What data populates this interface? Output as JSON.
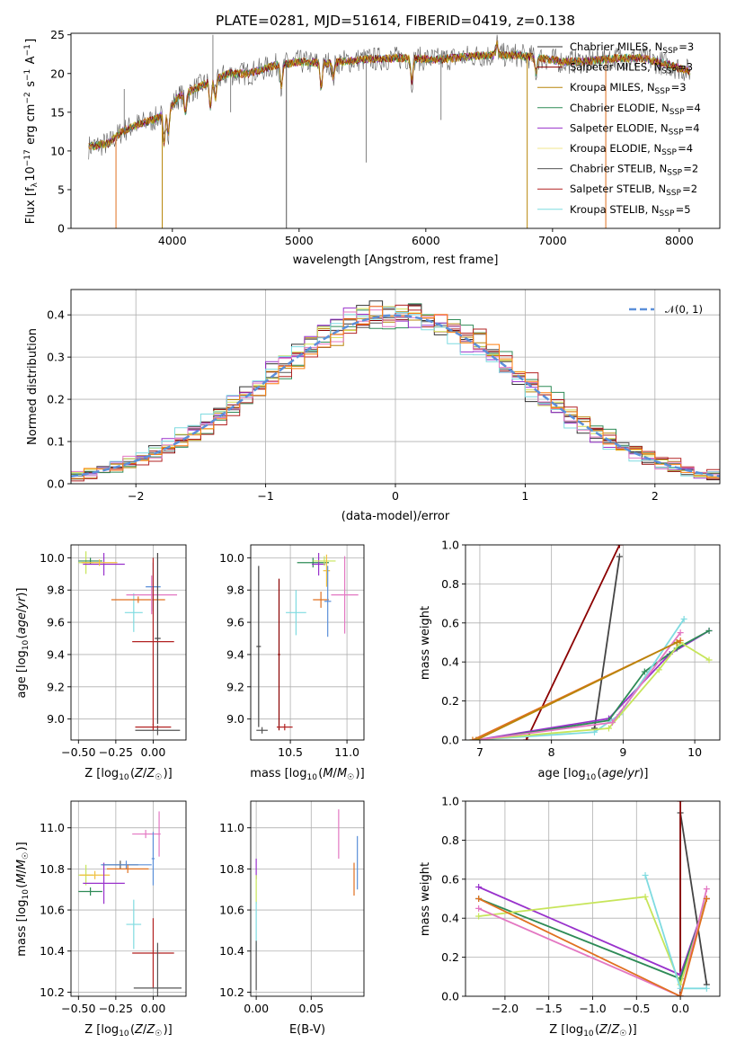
{
  "chart_data": [
    {
      "type": "line",
      "title": "PLATE=0281, MJD=51614, FIBERID=0419, z=0.138",
      "xlabel": "wavelength [Angstrom, rest frame]",
      "ylabel": "Flux [fλ10⁻¹⁷ erg cm⁻² s⁻¹ A⁻¹]",
      "xlim": [
        3200,
        8320
      ],
      "ylim": [
        0,
        25.2
      ],
      "xticks": [
        4000,
        5000,
        6000,
        7000,
        8000
      ],
      "yticks": [
        0,
        5,
        10,
        15,
        20,
        25
      ],
      "legend_position": "right",
      "series": [
        {
          "name": "Chabrier MILES, N_SSP=3",
          "color": "#333333"
        },
        {
          "name": "Salpeter MILES, N_SSP=3",
          "color": "#8b0000"
        },
        {
          "name": "Kroupa MILES, N_SSP=3",
          "color": "#b8860b"
        },
        {
          "name": "Chabrier ELODIE, N_SSP=4",
          "color": "#2e8b57"
        },
        {
          "name": "Salpeter ELODIE, N_SSP=4",
          "color": "#9932cc"
        },
        {
          "name": "Kroupa ELODIE, N_SSP=4",
          "color": "#f0e68c"
        },
        {
          "name": "Chabrier STELIB, N_SSP=2",
          "color": "#555555"
        },
        {
          "name": "Salpeter STELIB, N_SSP=2",
          "color": "#b22222"
        },
        {
          "name": "Kroupa STELIB, N_SSP=5",
          "color": "#7fdbe0"
        }
      ],
      "spectrum_nodes": {
        "x": [
          3340,
          3500,
          3600,
          3700,
          3850,
          3950,
          4050,
          4150,
          4300,
          4450,
          4600,
          4800,
          5000,
          5200,
          5500,
          5800,
          6100,
          6400,
          6700,
          6900,
          7100,
          7300,
          7500,
          7700,
          7900,
          8080
        ],
        "y": [
          10.5,
          11.0,
          12.5,
          13.3,
          14.0,
          15.0,
          17.0,
          17.8,
          19.0,
          20.0,
          20.0,
          21.0,
          21.5,
          21.3,
          21.8,
          22.0,
          21.8,
          22.3,
          22.4,
          22.0,
          21.5,
          21.6,
          22.0,
          22.0,
          21.2,
          20.3
        ]
      }
    },
    {
      "type": "histogram",
      "xlabel": "(data-model)/error",
      "ylabel": "Normed distribution",
      "xlim": [
        -2.5,
        2.5
      ],
      "ylim": [
        0,
        0.46
      ],
      "xticks": [
        -2,
        -1,
        0,
        1,
        2
      ],
      "yticks": [
        0.0,
        0.1,
        0.2,
        0.3,
        0.4
      ],
      "legend": [
        "𝒩(0, 1)"
      ],
      "reference_curve": {
        "name": "𝒩(0, 1)",
        "mean": 0,
        "sigma": 1,
        "color": "#5b8fd9"
      },
      "bin_width": 0.1,
      "series_colors": [
        "#333333",
        "#8b0000",
        "#b8860b",
        "#2e8b57",
        "#9932cc",
        "#d4e157",
        "#555555",
        "#b22222",
        "#7fdbe0",
        "#e377c2",
        "#ff7f0e"
      ]
    },
    {
      "type": "scatter",
      "xlabel": "Z [log10(Z/Z☉)]",
      "ylabel": "age  [log10(age/yr)]",
      "xlim": [
        -0.55,
        0.22
      ],
      "ylim": [
        8.87,
        10.08
      ],
      "xticks": [
        -0.5,
        -0.25,
        0.0
      ],
      "yticks": [
        9.0,
        9.2,
        9.4,
        9.6,
        9.8,
        10.0
      ],
      "points": [
        {
          "x": -0.45,
          "y": 9.97,
          "xerr": 0.05,
          "yerr": 0.07,
          "color": "#c7e55a"
        },
        {
          "x": -0.42,
          "y": 9.98,
          "xerr": 0.08,
          "yerr": 0.02,
          "color": "#2e8b57"
        },
        {
          "x": -0.33,
          "y": 9.96,
          "xerr": 0.14,
          "yerr": 0.07,
          "color": "#9932cc"
        },
        {
          "x": -0.36,
          "y": 9.97,
          "xerr": 0.12,
          "yerr": 0.02,
          "color": "#f0c040"
        },
        {
          "x": -0.13,
          "y": 9.66,
          "xerr": 0.06,
          "yerr": 0.12,
          "color": "#7fdbe0"
        },
        {
          "x": -0.1,
          "y": 9.74,
          "xerr": 0.18,
          "yerr": 0.02,
          "color": "#e07020"
        },
        {
          "x": -0.01,
          "y": 9.77,
          "xerr": 0.17,
          "yerr": 0.12,
          "color": "#e377c2"
        },
        {
          "x": 0.0,
          "y": 9.82,
          "xerr": 0.05,
          "yerr": 0.15,
          "color": "#5b8fd9"
        },
        {
          "x": 0.03,
          "y": 9.5,
          "xerr": 0.02,
          "yerr": 0.53,
          "color": "#444444"
        },
        {
          "x": 0.0,
          "y": 9.48,
          "xerr": 0.14,
          "yerr": 0.52,
          "color": "#b22222"
        },
        {
          "x": 0.03,
          "y": 8.93,
          "xerr": 0.15,
          "yerr": 0.03,
          "color": "#555555"
        },
        {
          "x": 0.0,
          "y": 8.95,
          "xerr": 0.12,
          "yerr": 0.02,
          "color": "#b22222"
        }
      ]
    },
    {
      "type": "scatter",
      "xlabel": "mass [log10(M/M☉)]",
      "ylabel": "",
      "xlim": [
        10.15,
        11.15
      ],
      "ylim": [
        8.87,
        10.08
      ],
      "xticks": [
        10.5,
        11.0
      ],
      "yticks": [
        9.0,
        9.2,
        9.4,
        9.6,
        9.8,
        10.0
      ],
      "points": [
        {
          "x": 10.7,
          "y": 9.97,
          "xerr": 0.14,
          "yerr": 0.03,
          "color": "#2e8b57"
        },
        {
          "x": 10.75,
          "y": 9.96,
          "xerr": 0.06,
          "yerr": 0.07,
          "color": "#9932cc"
        },
        {
          "x": 10.8,
          "y": 9.98,
          "xerr": 0.1,
          "yerr": 0.03,
          "color": "#c7e55a"
        },
        {
          "x": 10.82,
          "y": 9.92,
          "xerr": 0.03,
          "yerr": 0.1,
          "color": "#f0c040"
        },
        {
          "x": 10.98,
          "y": 9.77,
          "xerr": 0.12,
          "yerr": 0.24,
          "color": "#e377c2"
        },
        {
          "x": 10.77,
          "y": 9.74,
          "xerr": 0.07,
          "yerr": 0.05,
          "color": "#e07020"
        },
        {
          "x": 10.83,
          "y": 9.73,
          "xerr": 0.03,
          "yerr": 0.22,
          "color": "#5b8fd9"
        },
        {
          "x": 10.55,
          "y": 9.66,
          "xerr": 0.09,
          "yerr": 0.14,
          "color": "#7fdbe0"
        },
        {
          "x": 10.4,
          "y": 9.4,
          "xerr": 0.01,
          "yerr": 0.47,
          "color": "#8b0000"
        },
        {
          "x": 10.45,
          "y": 8.95,
          "xerr": 0.07,
          "yerr": 0.02,
          "color": "#b22222"
        },
        {
          "x": 10.22,
          "y": 9.45,
          "xerr": 0.02,
          "yerr": 0.5,
          "color": "#444444"
        },
        {
          "x": 10.25,
          "y": 8.93,
          "xerr": 0.05,
          "yerr": 0.02,
          "color": "#555555"
        }
      ]
    },
    {
      "type": "line",
      "xlabel": "age  [log10(age/yr)]",
      "ylabel": "mass weight",
      "xlim": [
        6.8,
        10.35
      ],
      "ylim": [
        0,
        1.0
      ],
      "xticks": [
        7,
        8,
        9,
        10
      ],
      "yticks": [
        0.0,
        0.2,
        0.4,
        0.6,
        0.8,
        1.0
      ],
      "series": [
        {
          "color": "#8b0000",
          "x": [
            7.65,
            8.95
          ],
          "y": [
            0.0,
            1.0
          ]
        },
        {
          "color": "#444444",
          "x": [
            8.6,
            8.95
          ],
          "y": [
            0.06,
            0.94
          ]
        },
        {
          "color": "#9932cc",
          "x": [
            6.95,
            8.8,
            9.65,
            10.2
          ],
          "y": [
            0.0,
            0.11,
            0.44,
            0.56
          ]
        },
        {
          "color": "#2e8b57",
          "x": [
            7.0,
            8.8,
            9.3,
            9.75,
            10.2
          ],
          "y": [
            0.0,
            0.1,
            0.35,
            0.47,
            0.56
          ]
        },
        {
          "color": "#7fdbe0",
          "x": [
            6.9,
            8.6,
            8.95,
            9.85
          ],
          "y": [
            0.0,
            0.04,
            0.13,
            0.62
          ]
        },
        {
          "color": "#c7e55a",
          "x": [
            6.9,
            8.8,
            9.5,
            9.8,
            10.2
          ],
          "y": [
            0.0,
            0.06,
            0.36,
            0.5,
            0.41
          ]
        },
        {
          "color": "#e07020",
          "x": [
            6.9,
            9.75,
            9.8
          ],
          "y": [
            0.0,
            0.5,
            0.51
          ]
        },
        {
          "color": "#e377c2",
          "x": [
            6.95,
            8.85,
            9.8
          ],
          "y": [
            0.0,
            0.09,
            0.55
          ]
        },
        {
          "color": "#b8860b",
          "x": [
            6.95,
            9.75
          ],
          "y": [
            0.0,
            0.5
          ]
        }
      ]
    },
    {
      "type": "scatter",
      "xlabel": "Z [log10(Z/Z☉)]",
      "ylabel": "mass [log10(M/M☉)]",
      "xlim": [
        -0.55,
        0.22
      ],
      "ylim": [
        10.18,
        11.13
      ],
      "xticks": [
        -0.5,
        -0.25,
        0.0
      ],
      "yticks": [
        10.2,
        10.4,
        10.6,
        10.8,
        11.0
      ],
      "points": [
        {
          "x": -0.45,
          "y": 10.77,
          "xerr": 0.05,
          "yerr": 0.05,
          "color": "#c7e55a"
        },
        {
          "x": -0.39,
          "y": 10.77,
          "xerr": 0.1,
          "yerr": 0.02,
          "color": "#f0c040"
        },
        {
          "x": -0.42,
          "y": 10.69,
          "xerr": 0.08,
          "yerr": 0.02,
          "color": "#2e8b57"
        },
        {
          "x": -0.33,
          "y": 10.73,
          "xerr": 0.14,
          "yerr": 0.1,
          "color": "#9932cc"
        },
        {
          "x": -0.22,
          "y": 10.82,
          "xerr": 0.12,
          "yerr": 0.02,
          "color": "#555555"
        },
        {
          "x": -0.18,
          "y": 10.82,
          "xerr": 0.17,
          "yerr": 0.02,
          "color": "#5b8fd9"
        },
        {
          "x": -0.17,
          "y": 10.8,
          "xerr": 0.14,
          "yerr": 0.02,
          "color": "#e07020"
        },
        {
          "x": -0.13,
          "y": 10.53,
          "xerr": 0.05,
          "yerr": 0.12,
          "color": "#7fdbe0"
        },
        {
          "x": -0.05,
          "y": 10.97,
          "xerr": 0.09,
          "yerr": 0.02,
          "color": "#e377c2"
        },
        {
          "x": 0.04,
          "y": 10.97,
          "xerr": 0.01,
          "yerr": 0.11,
          "color": "#e377c2"
        },
        {
          "x": 0.0,
          "y": 10.85,
          "xerr": 0.01,
          "yerr": 0.13,
          "color": "#5b8fd9"
        },
        {
          "x": 0.0,
          "y": 10.39,
          "xerr": 0.14,
          "yerr": 0.17,
          "color": "#b22222"
        },
        {
          "x": 0.03,
          "y": 10.22,
          "xerr": 0.16,
          "yerr": 0.22,
          "color": "#555555"
        }
      ]
    },
    {
      "type": "scatter",
      "xlabel": "E(B-V)",
      "ylabel": "",
      "xlim": [
        -0.005,
        0.098
      ],
      "ylim": [
        10.18,
        11.13
      ],
      "xticks": [
        0.0,
        0.05
      ],
      "yticks": [
        10.2,
        10.4,
        10.6,
        10.8,
        11.0
      ],
      "points": [
        {
          "x": 0.0,
          "y": 10.8,
          "xerr": 0.0,
          "yerr": 0.05,
          "color": "#9932cc"
        },
        {
          "x": 0.0,
          "y": 10.7,
          "xerr": 0.0,
          "yerr": 0.07,
          "color": "#c7e55a"
        },
        {
          "x": 0.0,
          "y": 10.52,
          "xerr": 0.0,
          "yerr": 0.12,
          "color": "#7fdbe0"
        },
        {
          "x": 0.0,
          "y": 10.33,
          "xerr": 0.0,
          "yerr": 0.12,
          "color": "#555555"
        },
        {
          "x": 0.075,
          "y": 10.97,
          "xerr": 0.0,
          "yerr": 0.12,
          "color": "#e377c2"
        },
        {
          "x": 0.089,
          "y": 10.75,
          "xerr": 0.0,
          "yerr": 0.08,
          "color": "#e07020"
        },
        {
          "x": 0.092,
          "y": 10.83,
          "xerr": 0.0,
          "yerr": 0.13,
          "color": "#5b8fd9"
        }
      ]
    },
    {
      "type": "line",
      "xlabel": "Z [log10(Z/Z☉)]",
      "ylabel": "mass weight",
      "xlim": [
        -2.45,
        0.45
      ],
      "ylim": [
        0,
        1.0
      ],
      "xticks": [
        -2.0,
        -1.5,
        -1.0,
        -0.5,
        0.0
      ],
      "yticks": [
        0.0,
        0.2,
        0.4,
        0.6,
        0.8,
        1.0
      ],
      "series": [
        {
          "color": "#444444",
          "x": [
            0.0,
            0.0,
            0.3
          ],
          "y": [
            0.0,
            0.94,
            0.06
          ]
        },
        {
          "color": "#8b0000",
          "x": [
            0.0,
            0.0
          ],
          "y": [
            0.0,
            1.0
          ]
        },
        {
          "color": "#9932cc",
          "x": [
            -2.3,
            0.0,
            0.3
          ],
          "y": [
            0.56,
            0.11,
            0.5
          ]
        },
        {
          "color": "#2e8b57",
          "x": [
            -2.3,
            0.0,
            0.3
          ],
          "y": [
            0.5,
            0.09,
            0.5
          ]
        },
        {
          "color": "#c7e55a",
          "x": [
            -2.3,
            -0.4,
            0.0,
            0.3
          ],
          "y": [
            0.41,
            0.51,
            0.06,
            0.5
          ]
        },
        {
          "color": "#7fdbe0",
          "x": [
            -0.4,
            0.0,
            0.3
          ],
          "y": [
            0.62,
            0.04,
            0.04
          ]
        },
        {
          "color": "#e377c2",
          "x": [
            -2.3,
            0.0,
            0.3
          ],
          "y": [
            0.45,
            0.0,
            0.55
          ]
        },
        {
          "color": "#e07020",
          "x": [
            -2.3,
            0.0,
            0.3
          ],
          "y": [
            0.5,
            0.0,
            0.5
          ]
        }
      ]
    }
  ]
}
